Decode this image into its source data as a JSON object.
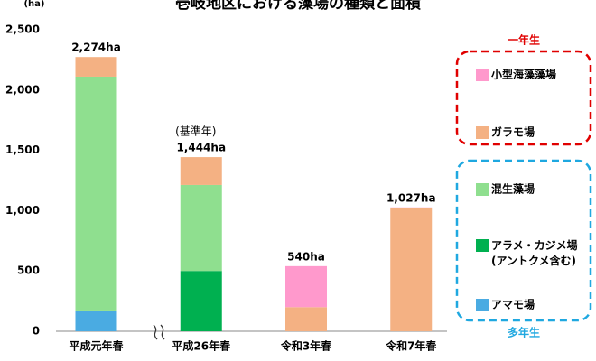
{
  "chart_data": {
    "type": "stacked_bar",
    "title": "壱岐地区における藻場の種類と面積",
    "y_unit": "(ha)",
    "categories": [
      "平成元年春",
      "平成26年春",
      "令和3年春",
      "令和7年春"
    ],
    "series": [
      {
        "name": "アマモ場",
        "color": "#4aabe2",
        "values": [
          165,
          0,
          0,
          0
        ]
      },
      {
        "name": "アラメ・カジメ場\n(アントクメ含む)",
        "color": "#00b050",
        "values": [
          0,
          500,
          0,
          0
        ]
      },
      {
        "name": "混生藻場",
        "color": "#8fdf8f",
        "values": [
          1946,
          713,
          0,
          0
        ]
      },
      {
        "name": "ガラモ場",
        "color": "#f4b183",
        "values": [
          163,
          231,
          200,
          1018
        ]
      },
      {
        "name": "小型海藻藻場",
        "color": "#ff99cc",
        "values": [
          0,
          0,
          340,
          9
        ]
      }
    ],
    "totals": [
      2274,
      1444,
      540,
      1027
    ],
    "total_labels": [
      "2,274ha",
      "1,444ha",
      "540ha",
      "1,027ha"
    ],
    "annotation": "(基準年)",
    "legend_groups": [
      {
        "label": "一年生",
        "color": "#e00000"
      },
      {
        "label": "多年生",
        "color": "#1fa8e0"
      }
    ],
    "ylim": [
      0,
      2500
    ],
    "yticks": [
      0,
      500,
      {
        "value": 1000,
        "label": "1,000"
      },
      {
        "value": 1500,
        "label": "1,500"
      },
      {
        "value": 2000,
        "label": "2,000"
      },
      {
        "value": 2500,
        "label": "2,500"
      }
    ],
    "grid": false
  }
}
